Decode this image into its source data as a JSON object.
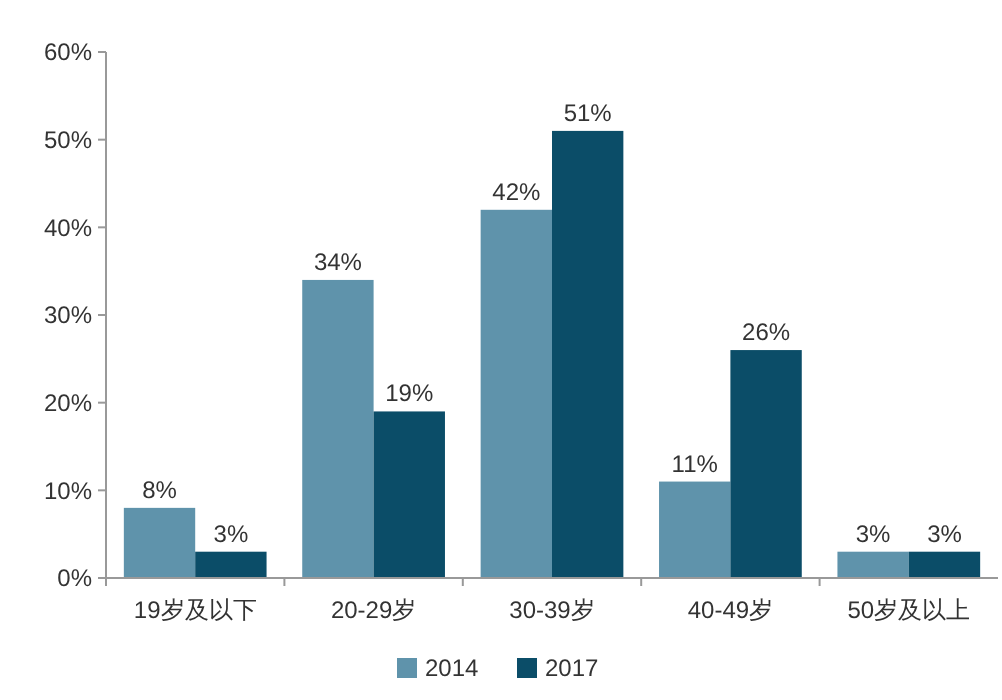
{
  "chart_data": {
    "type": "bar",
    "categories": [
      "19岁及以下",
      "20-29岁",
      "30-39岁",
      "40-49岁",
      "50岁及以上"
    ],
    "series": [
      {
        "name": "2014",
        "color": "#5f93ab",
        "values": [
          8,
          34,
          42,
          11,
          3
        ],
        "value_labels": [
          "8%",
          "34%",
          "42%",
          "11%",
          "3%"
        ]
      },
      {
        "name": "2017",
        "color": "#0b4d68",
        "values": [
          3,
          19,
          51,
          26,
          3
        ],
        "value_labels": [
          "3%",
          "19%",
          "51%",
          "26%",
          "3%"
        ]
      }
    ],
    "ylim": [
      0,
      60
    ],
    "yticks": [
      {
        "value": 0,
        "label": "0%"
      },
      {
        "value": 10,
        "label": "10%"
      },
      {
        "value": 20,
        "label": "20%"
      },
      {
        "value": 30,
        "label": "30%"
      },
      {
        "value": 40,
        "label": "40%"
      },
      {
        "value": 50,
        "label": "50%"
      },
      {
        "value": 60,
        "label": "60%"
      }
    ],
    "legend": "bottom"
  }
}
